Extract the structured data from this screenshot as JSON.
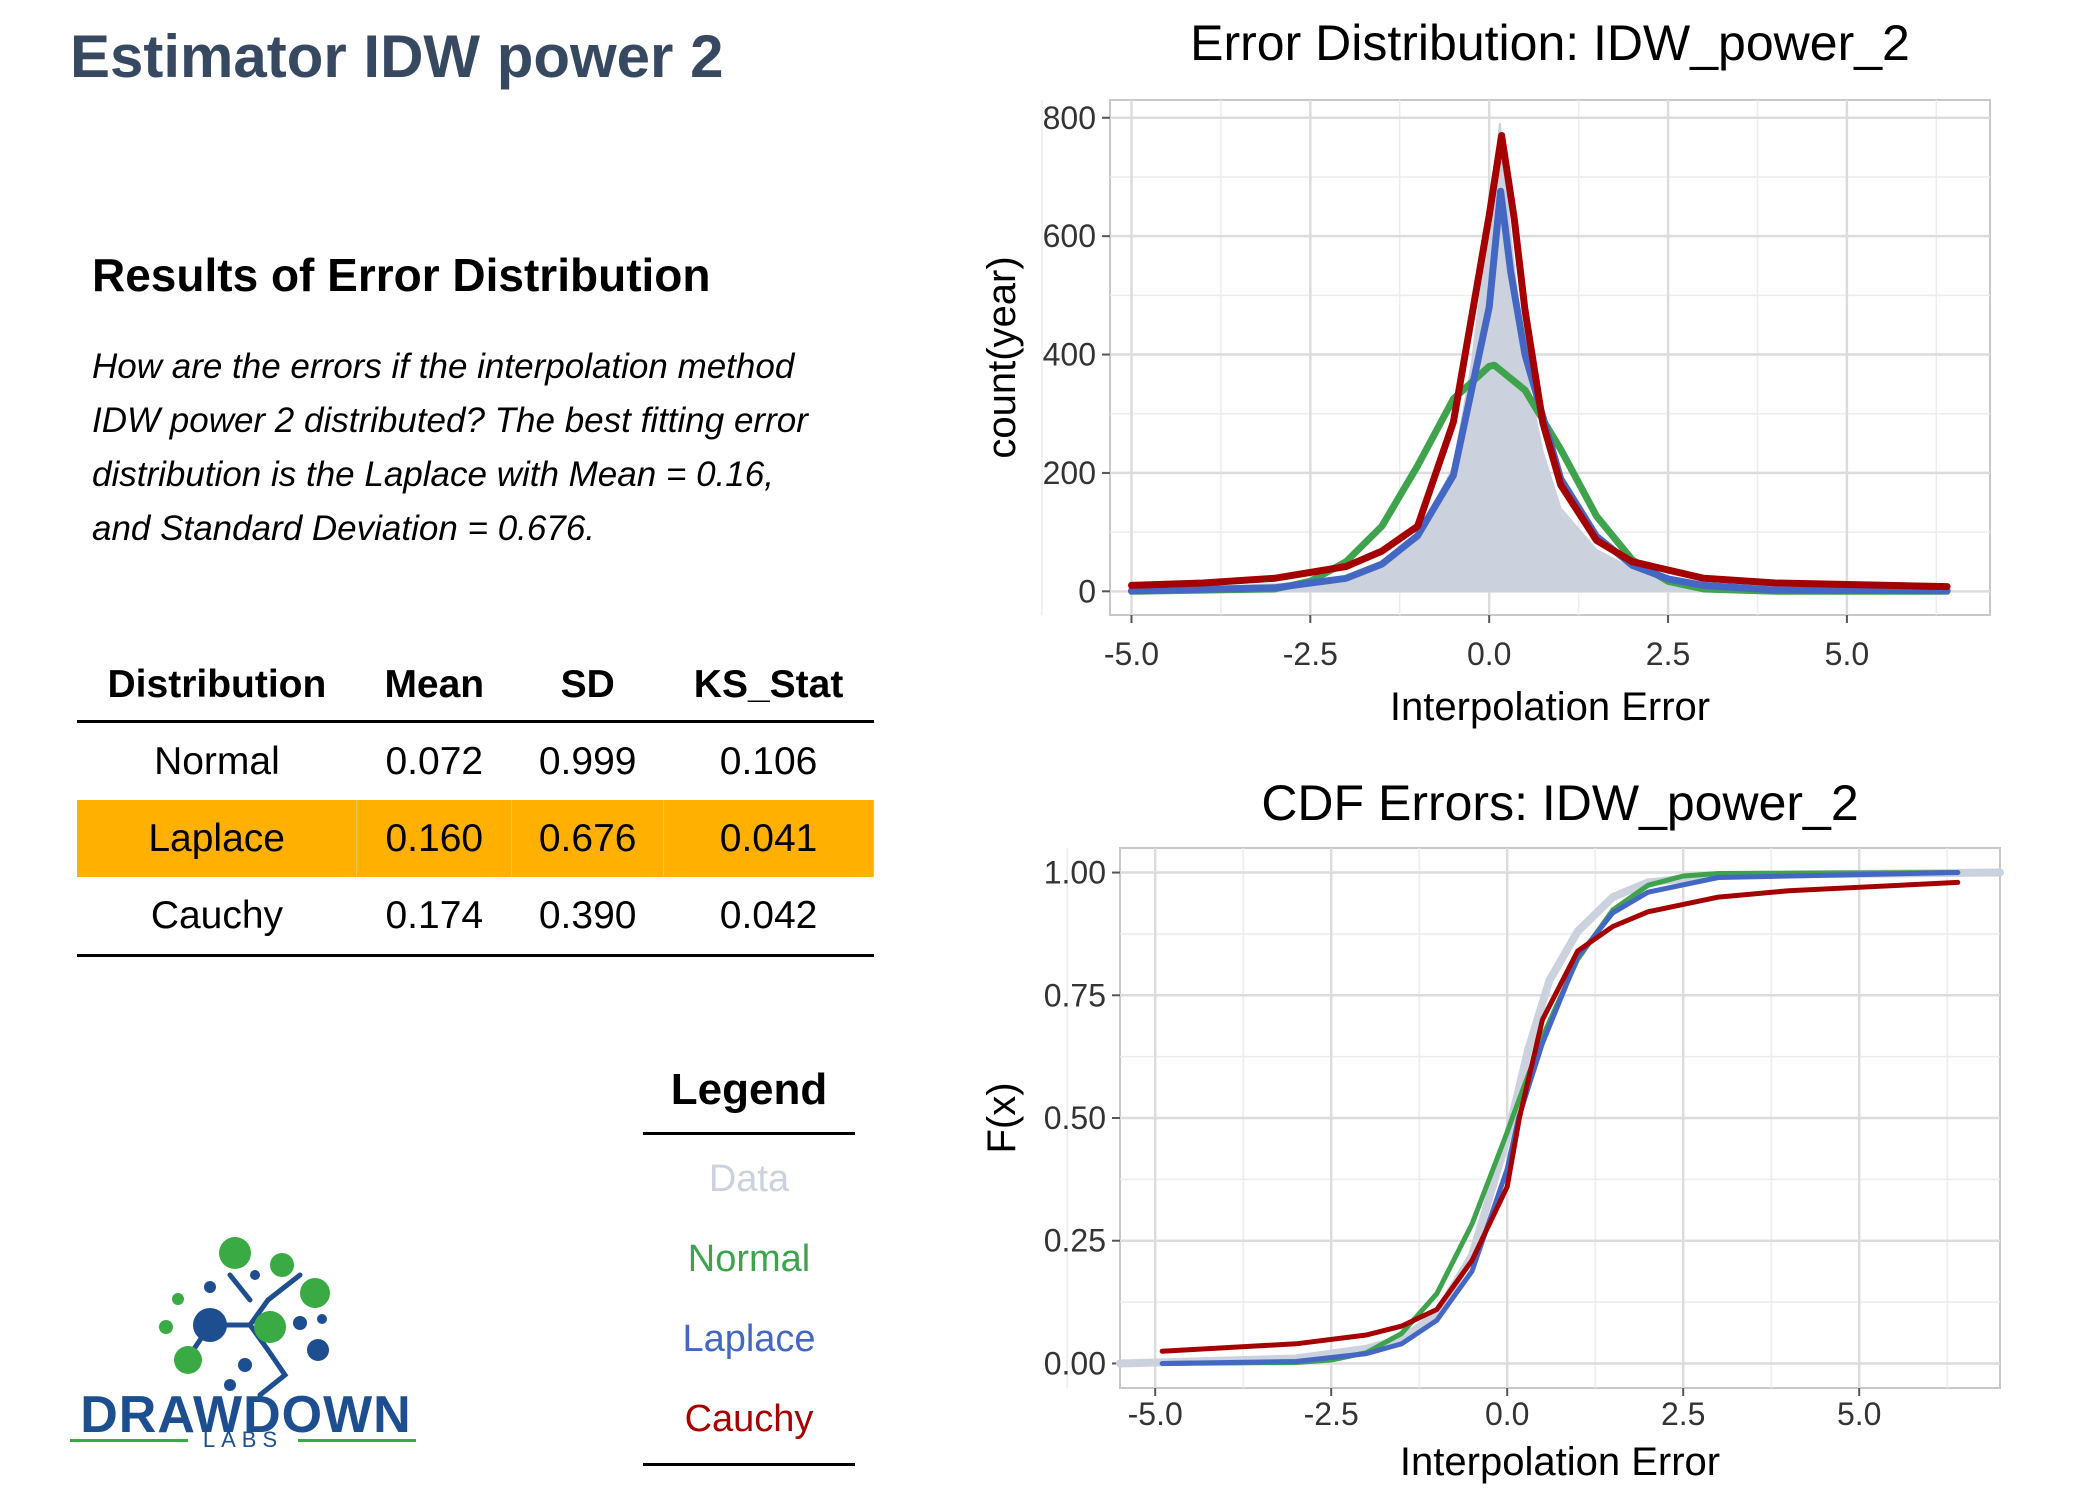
{
  "page": {
    "title": "Estimator IDW power 2",
    "section_title": "Results of Error Distribution",
    "description": "How are the errors if the interpolation method IDW power 2 distributed? The best fitting error distribution is the Laplace with Mean = 0.16, and Standard Deviation = 0.676."
  },
  "table": {
    "headers": [
      "Distribution",
      "Mean",
      "SD",
      "KS_Stat"
    ],
    "rows": [
      [
        "Normal",
        "0.072",
        "0.999",
        "0.106"
      ],
      [
        "Laplace",
        "0.160",
        "0.676",
        "0.041"
      ],
      [
        "Cauchy",
        "0.174",
        "0.390",
        "0.042"
      ]
    ],
    "highlight_row": 1,
    "highlight_color": "#FFB000"
  },
  "legend": {
    "title": "Legend",
    "items": [
      {
        "label": "Data",
        "color": "#CBD2DE"
      },
      {
        "label": "Normal",
        "color": "#3FA34D"
      },
      {
        "label": "Laplace",
        "color": "#4467C4"
      },
      {
        "label": "Cauchy",
        "color": "#A50000"
      }
    ]
  },
  "logo": {
    "name": "DRAWDOWN",
    "sub": "LABS",
    "blue": "#1D4E8F",
    "green": "#3AAA45"
  },
  "chart_data": [
    {
      "type": "area",
      "title": "Error Distribution: IDW_power_2",
      "xlabel": "Interpolation Error",
      "ylabel": "count(year)",
      "xlim": [
        -5.3,
        7.0
      ],
      "ylim": [
        -40,
        830
      ],
      "xticks": [
        -5.0,
        -2.5,
        0.0,
        2.5,
        5.0
      ],
      "xtick_labels": [
        "-5.0",
        "-2.5",
        "0.0",
        "2.5",
        "5.0"
      ],
      "yticks": [
        0,
        200,
        400,
        600,
        800
      ],
      "ytick_labels": [
        "0",
        "200",
        "400",
        "600",
        "800"
      ],
      "grid": true,
      "series": [
        {
          "name": "Data",
          "color": "#CBD2DE",
          "x": [
            -5.0,
            -3.0,
            -2.0,
            -1.5,
            -1.0,
            -0.5,
            -0.25,
            0.0,
            0.15,
            0.3,
            0.5,
            0.75,
            1.0,
            1.5,
            2.0,
            2.5,
            4.0,
            6.4
          ],
          "y": [
            2,
            12,
            18,
            40,
            92,
            210,
            380,
            620,
            790,
            600,
            380,
            235,
            140,
            70,
            38,
            18,
            5,
            2
          ]
        },
        {
          "name": "Normal",
          "color": "#3FA34D",
          "x": [
            -5.0,
            -3.0,
            -2.5,
            -2.0,
            -1.5,
            -1.0,
            -0.5,
            0.0,
            0.072,
            0.5,
            1.0,
            1.5,
            2.0,
            2.5,
            3.0,
            4.0,
            6.4
          ],
          "y": [
            0,
            4,
            17,
            50,
            110,
            212,
            325,
            380,
            382,
            340,
            240,
            127,
            53,
            17,
            4,
            0,
            0
          ]
        },
        {
          "name": "Laplace",
          "color": "#4467C4",
          "x": [
            -5.0,
            -3.0,
            -2.0,
            -1.5,
            -1.0,
            -0.5,
            0.0,
            0.16,
            0.3,
            0.5,
            1.0,
            1.5,
            2.0,
            2.5,
            3.0,
            4.0,
            6.4
          ],
          "y": [
            1,
            6,
            22,
            46,
            94,
            196,
            480,
            676,
            540,
            400,
            190,
            93,
            44,
            21,
            10,
            2,
            1
          ]
        },
        {
          "name": "Cauchy",
          "color": "#A50000",
          "x": [
            -5.0,
            -4.0,
            -3.0,
            -2.0,
            -1.5,
            -1.0,
            -0.5,
            -0.25,
            0.0,
            0.174,
            0.35,
            0.5,
            0.75,
            1.0,
            1.5,
            2.0,
            3.0,
            4.0,
            6.4
          ],
          "y": [
            10,
            14,
            22,
            42,
            68,
            110,
            286,
            460,
            635,
            770,
            630,
            475,
            285,
            180,
            86,
            50,
            22,
            14,
            8
          ]
        }
      ]
    },
    {
      "type": "line",
      "title": "CDF Errors: IDW_power_2",
      "xlabel": "Interpolation Error",
      "ylabel": "F(x)",
      "xlim": [
        -5.5,
        7.0
      ],
      "ylim": [
        -0.05,
        1.05
      ],
      "xticks": [
        -5.0,
        -2.5,
        0.0,
        2.5,
        5.0
      ],
      "xtick_labels": [
        "-5.0",
        "-2.5",
        "0.0",
        "2.5",
        "5.0"
      ],
      "yticks": [
        0.0,
        0.25,
        0.5,
        0.75,
        1.0
      ],
      "ytick_labels": [
        "0.00",
        "0.25",
        "0.50",
        "0.75",
        "1.00"
      ],
      "grid": true,
      "series": [
        {
          "name": "Data",
          "color": "#CBD2DE",
          "x": [
            -5.5,
            -3.0,
            -2.0,
            -1.5,
            -1.0,
            -0.5,
            0.0,
            0.3,
            0.6,
            1.0,
            1.5,
            2.0,
            3.0,
            7.0
          ],
          "y": [
            0.0,
            0.01,
            0.03,
            0.05,
            0.1,
            0.22,
            0.46,
            0.64,
            0.78,
            0.88,
            0.95,
            0.98,
            0.995,
            1.0
          ]
        },
        {
          "name": "Normal",
          "color": "#3FA34D",
          "x": [
            -4.9,
            -3.0,
            -2.5,
            -2.0,
            -1.5,
            -1.0,
            -0.5,
            0.0,
            0.072,
            0.5,
            1.0,
            1.5,
            2.0,
            2.5,
            3.0,
            6.4
          ],
          "y": [
            0.0,
            0.002,
            0.007,
            0.022,
            0.061,
            0.142,
            0.284,
            0.471,
            0.5,
            0.665,
            0.823,
            0.924,
            0.974,
            0.993,
            0.998,
            1.0
          ]
        },
        {
          "name": "Laplace",
          "color": "#4467C4",
          "x": [
            -4.9,
            -3.0,
            -2.0,
            -1.5,
            -1.0,
            -0.5,
            0.0,
            0.16,
            0.5,
            1.0,
            1.5,
            2.0,
            3.0,
            6.4
          ],
          "y": [
            0.0,
            0.004,
            0.02,
            0.04,
            0.088,
            0.188,
            0.396,
            0.5,
            0.652,
            0.828,
            0.918,
            0.96,
            0.99,
            1.0
          ]
        },
        {
          "name": "Cauchy",
          "color": "#A50000",
          "x": [
            -4.9,
            -3.0,
            -2.0,
            -1.5,
            -1.0,
            -0.5,
            0.0,
            0.174,
            0.5,
            1.0,
            1.5,
            2.0,
            3.0,
            4.0,
            6.4
          ],
          "y": [
            0.025,
            0.04,
            0.058,
            0.076,
            0.11,
            0.21,
            0.36,
            0.5,
            0.7,
            0.84,
            0.89,
            0.92,
            0.95,
            0.963,
            0.98
          ]
        }
      ]
    }
  ]
}
